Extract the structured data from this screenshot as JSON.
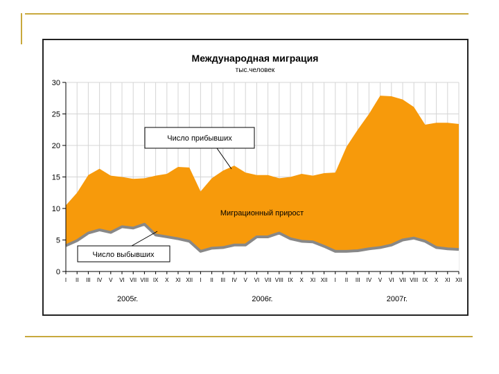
{
  "chart_data": {
    "type": "area",
    "title": "Международная миграция",
    "subtitle": "тыс.человек",
    "ylim": [
      0,
      30
    ],
    "y_ticks": [
      0,
      5,
      10,
      15,
      20,
      25,
      30
    ],
    "categories": [
      "I",
      "II",
      "III",
      "IV",
      "V",
      "VI",
      "VII",
      "VIII",
      "IX",
      "X",
      "XI",
      "XII",
      "I",
      "II",
      "III",
      "IV",
      "V",
      "VI",
      "VII",
      "VIII",
      "IX",
      "X",
      "XI",
      "XII",
      "I",
      "II",
      "III",
      "IV",
      "V",
      "VI",
      "VII",
      "VIII",
      "IX",
      "X",
      "XI",
      "XII"
    ],
    "year_labels": [
      "2005г.",
      "2006г.",
      "2007г."
    ],
    "grid": true,
    "series": [
      {
        "name": "Число прибывших",
        "values": [
          10.5,
          12.5,
          15.3,
          16.3,
          15.2,
          15.0,
          14.7,
          14.8,
          15.2,
          15.5,
          16.6,
          16.5,
          12.7,
          14.8,
          16.0,
          16.8,
          15.7,
          15.3,
          15.3,
          14.8,
          15.0,
          15.5,
          15.2,
          15.6,
          15.7,
          19.8,
          22.5,
          25.0,
          27.9,
          27.8,
          27.3,
          26.1,
          23.3,
          23.6,
          23.6,
          23.4
        ],
        "color": "#f79a0b"
      },
      {
        "name": "Число выбывших",
        "values": [
          4.1,
          4.9,
          6.1,
          6.6,
          6.2,
          7.1,
          6.9,
          7.5,
          5.8,
          5.5,
          5.2,
          4.8,
          3.2,
          3.7,
          3.8,
          4.2,
          4.2,
          5.5,
          5.5,
          6.1,
          5.2,
          4.8,
          4.7,
          4.0,
          3.2,
          3.2,
          3.3,
          3.6,
          3.8,
          4.2,
          5.0,
          5.3,
          4.8,
          3.8,
          3.6,
          3.5
        ],
        "color": "#888888"
      }
    ],
    "annotations": {
      "arrivals": "Число прибывших",
      "net": "Миграционный прирост",
      "departures": "Число выбывших"
    }
  }
}
